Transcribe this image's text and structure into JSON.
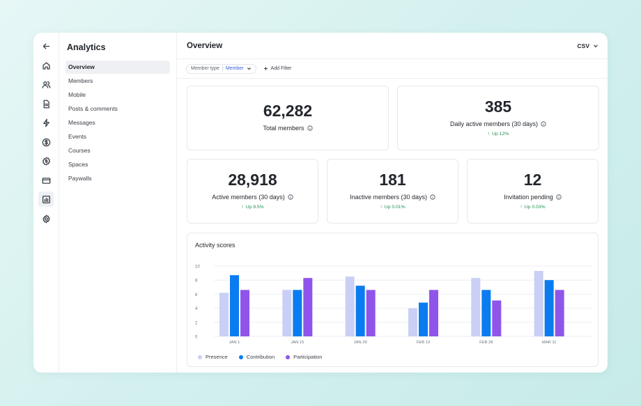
{
  "sidebar": {
    "title": "Analytics",
    "items": [
      "Overview",
      "Members",
      "Mobile",
      "Posts & comments",
      "Messages",
      "Events",
      "Courses",
      "Spaces",
      "Paywalls"
    ]
  },
  "header": {
    "title": "Overview",
    "export_label": "CSV"
  },
  "filters": {
    "member_type_label": "Member type",
    "member_type_value": "Member",
    "add_filter": "Add Filter"
  },
  "stats": {
    "total_members": {
      "value": "62,282",
      "label": "Total members"
    },
    "daily_active": {
      "value": "385",
      "label": "Daily active members (30 days)",
      "trend": "Up 12%"
    },
    "active": {
      "value": "28,918",
      "label": "Active members (30 days)",
      "trend": "Up 9.5%"
    },
    "inactive": {
      "value": "181",
      "label": "Inactive members (30 days)",
      "trend": "Up 0.01%"
    },
    "invitation": {
      "value": "12",
      "label": "Invitation pending",
      "trend": "Up 0.03%"
    }
  },
  "colors": {
    "presence": "#c9cff5",
    "contribution": "#0a7cf0",
    "participation": "#8f55ea",
    "trend_up": "#1e8e4e"
  },
  "chart_data": {
    "type": "bar",
    "title": "Activity scores",
    "categories": [
      "JAN 1",
      "JAN 15",
      "JAN 29",
      "FEB 13",
      "FEB 28",
      "MAR 11"
    ],
    "series": [
      {
        "name": "Presence",
        "values": [
          6.2,
          6.6,
          8.5,
          4.0,
          8.3,
          9.3
        ]
      },
      {
        "name": "Contribution",
        "values": [
          8.7,
          6.6,
          7.2,
          4.8,
          6.6,
          8.0
        ]
      },
      {
        "name": "Participation",
        "values": [
          6.6,
          8.3,
          6.6,
          6.6,
          5.1,
          6.6
        ]
      }
    ],
    "yticks": [
      "0",
      "2",
      "4",
      "6",
      "8",
      "10"
    ],
    "ylim": [
      0,
      10
    ],
    "grid": true,
    "legend_position": "bottom-left"
  }
}
